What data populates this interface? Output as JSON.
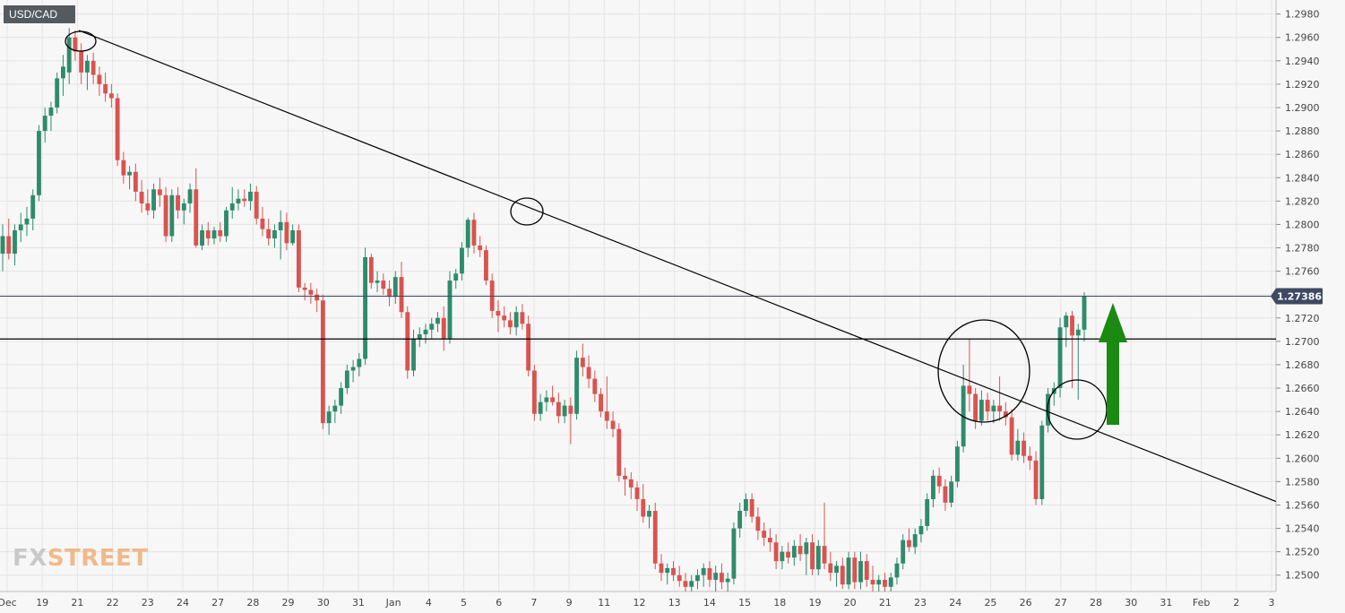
{
  "symbol": "USD/CAD",
  "logo": {
    "fx": "FX",
    "street": "STREET"
  },
  "colors": {
    "background": "#f7f7f7",
    "grid": "#e4e4e4",
    "bull": "#2e8b6b",
    "bear": "#d9534f",
    "line": "#000000",
    "price_badge": "#3e4a63",
    "arrow": "#1a8a12"
  },
  "chart_data": {
    "type": "candlestick",
    "title": "",
    "xlabel": "",
    "ylabel": "",
    "ylim": [
      1.2486,
      1.2992
    ],
    "y_ticks": [
      "1.2980",
      "1.2960",
      "1.2940",
      "1.2920",
      "1.2900",
      "1.2880",
      "1.2860",
      "1.2840",
      "1.2820",
      "1.2800",
      "1.2780",
      "1.2760",
      "1.2740",
      "1.2720",
      "1.2700",
      "1.2680",
      "1.2660",
      "1.2640",
      "1.2620",
      "1.2600",
      "1.2580",
      "1.2560",
      "1.2540",
      "1.2520",
      "1.2500"
    ],
    "x_ticks": [
      "Dec",
      "19",
      "21",
      "22",
      "23",
      "24",
      "27",
      "28",
      "29",
      "30",
      "31",
      "Jan",
      "4",
      "5",
      "6",
      "7",
      "9",
      "11",
      "12",
      "13",
      "14",
      "15",
      "18",
      "19",
      "20",
      "21",
      "23",
      "24",
      "25",
      "26",
      "27",
      "28",
      "30",
      "31",
      "Feb",
      "2",
      "3"
    ],
    "current_price": "1.27386",
    "current_price_value": 1.27386,
    "support_level": 1.2702,
    "trendline": {
      "start_price": 1.2966,
      "end_price": 1.2563
    },
    "annotations": [
      "circle at Dec 20 high",
      "circle at Jan 6 high",
      "large circle at Jan 24 high",
      "circle at Jan 27 retest",
      "green up arrow"
    ],
    "candles": [
      {
        "o": 1.2775,
        "h": 1.28,
        "l": 1.276,
        "c": 1.279
      },
      {
        "o": 1.279,
        "h": 1.2805,
        "l": 1.277,
        "c": 1.2775
      },
      {
        "o": 1.2775,
        "h": 1.28,
        "l": 1.2765,
        "c": 1.2795
      },
      {
        "o": 1.2795,
        "h": 1.281,
        "l": 1.2785,
        "c": 1.28
      },
      {
        "o": 1.28,
        "h": 1.2815,
        "l": 1.279,
        "c": 1.2805
      },
      {
        "o": 1.2805,
        "h": 1.283,
        "l": 1.2795,
        "c": 1.2825
      },
      {
        "o": 1.2825,
        "h": 1.2885,
        "l": 1.282,
        "c": 1.288
      },
      {
        "o": 1.288,
        "h": 1.29,
        "l": 1.287,
        "c": 1.2893
      },
      {
        "o": 1.2893,
        "h": 1.2905,
        "l": 1.288,
        "c": 1.29
      },
      {
        "o": 1.29,
        "h": 1.293,
        "l": 1.2895,
        "c": 1.2925
      },
      {
        "o": 1.2925,
        "h": 1.2945,
        "l": 1.291,
        "c": 1.2935
      },
      {
        "o": 1.293,
        "h": 1.2968,
        "l": 1.292,
        "c": 1.296
      },
      {
        "o": 1.296,
        "h": 1.2966,
        "l": 1.294,
        "c": 1.2948
      },
      {
        "o": 1.2948,
        "h": 1.2955,
        "l": 1.292,
        "c": 1.293
      },
      {
        "o": 1.293,
        "h": 1.2945,
        "l": 1.2915,
        "c": 1.294
      },
      {
        "o": 1.294,
        "h": 1.2947,
        "l": 1.292,
        "c": 1.2928
      },
      {
        "o": 1.2928,
        "h": 1.2935,
        "l": 1.291,
        "c": 1.292
      },
      {
        "o": 1.292,
        "h": 1.293,
        "l": 1.2905,
        "c": 1.2912
      },
      {
        "o": 1.2912,
        "h": 1.292,
        "l": 1.29,
        "c": 1.2908
      },
      {
        "o": 1.2908,
        "h": 1.2912,
        "l": 1.285,
        "c": 1.2855
      },
      {
        "o": 1.2855,
        "h": 1.2862,
        "l": 1.2835,
        "c": 1.2842
      },
      {
        "o": 1.2842,
        "h": 1.285,
        "l": 1.283,
        "c": 1.2845
      },
      {
        "o": 1.2845,
        "h": 1.2852,
        "l": 1.282,
        "c": 1.2828
      },
      {
        "o": 1.2828,
        "h": 1.2838,
        "l": 1.281,
        "c": 1.2818
      },
      {
        "o": 1.2818,
        "h": 1.283,
        "l": 1.2808,
        "c": 1.2812
      },
      {
        "o": 1.2812,
        "h": 1.2835,
        "l": 1.2805,
        "c": 1.283
      },
      {
        "o": 1.283,
        "h": 1.284,
        "l": 1.2815,
        "c": 1.2825
      },
      {
        "o": 1.2825,
        "h": 1.2832,
        "l": 1.2785,
        "c": 1.279
      },
      {
        "o": 1.279,
        "h": 1.283,
        "l": 1.2785,
        "c": 1.2825
      },
      {
        "o": 1.2825,
        "h": 1.2832,
        "l": 1.2805,
        "c": 1.2812
      },
      {
        "o": 1.2812,
        "h": 1.2822,
        "l": 1.28,
        "c": 1.2818
      },
      {
        "o": 1.2818,
        "h": 1.2835,
        "l": 1.281,
        "c": 1.283
      },
      {
        "o": 1.283,
        "h": 1.2848,
        "l": 1.278,
        "c": 1.2782
      },
      {
        "o": 1.2782,
        "h": 1.28,
        "l": 1.2778,
        "c": 1.2795
      },
      {
        "o": 1.2795,
        "h": 1.2802,
        "l": 1.2782,
        "c": 1.2788
      },
      {
        "o": 1.2788,
        "h": 1.2798,
        "l": 1.2783,
        "c": 1.2795
      },
      {
        "o": 1.2795,
        "h": 1.2802,
        "l": 1.2785,
        "c": 1.279
      },
      {
        "o": 1.279,
        "h": 1.2815,
        "l": 1.2785,
        "c": 1.2812
      },
      {
        "o": 1.2812,
        "h": 1.2832,
        "l": 1.2805,
        "c": 1.2818
      },
      {
        "o": 1.2818,
        "h": 1.283,
        "l": 1.2812,
        "c": 1.2822
      },
      {
        "o": 1.2822,
        "h": 1.283,
        "l": 1.2815,
        "c": 1.282
      },
      {
        "o": 1.282,
        "h": 1.2835,
        "l": 1.2812,
        "c": 1.2828
      },
      {
        "o": 1.2828,
        "h": 1.2833,
        "l": 1.28,
        "c": 1.2805
      },
      {
        "o": 1.2805,
        "h": 1.2815,
        "l": 1.279,
        "c": 1.2796
      },
      {
        "o": 1.2796,
        "h": 1.2805,
        "l": 1.2782,
        "c": 1.2788
      },
      {
        "o": 1.2788,
        "h": 1.28,
        "l": 1.278,
        "c": 1.2795
      },
      {
        "o": 1.2795,
        "h": 1.2812,
        "l": 1.277,
        "c": 1.2802
      },
      {
        "o": 1.2802,
        "h": 1.281,
        "l": 1.2778,
        "c": 1.2784
      },
      {
        "o": 1.2784,
        "h": 1.28,
        "l": 1.2782,
        "c": 1.2795
      },
      {
        "o": 1.2795,
        "h": 1.28,
        "l": 1.2742,
        "c": 1.2746
      },
      {
        "o": 1.2746,
        "h": 1.275,
        "l": 1.2735,
        "c": 1.2744
      },
      {
        "o": 1.2744,
        "h": 1.275,
        "l": 1.2732,
        "c": 1.274
      },
      {
        "o": 1.274,
        "h": 1.2745,
        "l": 1.2725,
        "c": 1.2735
      },
      {
        "o": 1.2735,
        "h": 1.274,
        "l": 1.2625,
        "c": 1.263
      },
      {
        "o": 1.263,
        "h": 1.2645,
        "l": 1.262,
        "c": 1.264
      },
      {
        "o": 1.264,
        "h": 1.265,
        "l": 1.263,
        "c": 1.2645
      },
      {
        "o": 1.2645,
        "h": 1.2665,
        "l": 1.2638,
        "c": 1.266
      },
      {
        "o": 1.266,
        "h": 1.268,
        "l": 1.2655,
        "c": 1.2675
      },
      {
        "o": 1.2675,
        "h": 1.2684,
        "l": 1.2665,
        "c": 1.2678
      },
      {
        "o": 1.2678,
        "h": 1.269,
        "l": 1.267,
        "c": 1.2685
      },
      {
        "o": 1.2685,
        "h": 1.278,
        "l": 1.268,
        "c": 1.2772
      },
      {
        "o": 1.2772,
        "h": 1.2775,
        "l": 1.2745,
        "c": 1.275
      },
      {
        "o": 1.275,
        "h": 1.276,
        "l": 1.2742,
        "c": 1.2752
      },
      {
        "o": 1.2752,
        "h": 1.2758,
        "l": 1.274,
        "c": 1.2745
      },
      {
        "o": 1.2745,
        "h": 1.2752,
        "l": 1.273,
        "c": 1.2738
      },
      {
        "o": 1.2738,
        "h": 1.276,
        "l": 1.2732,
        "c": 1.2755
      },
      {
        "o": 1.2755,
        "h": 1.2768,
        "l": 1.272,
        "c": 1.2725
      },
      {
        "o": 1.2725,
        "h": 1.273,
        "l": 1.2668,
        "c": 1.2675
      },
      {
        "o": 1.2675,
        "h": 1.271,
        "l": 1.267,
        "c": 1.2702
      },
      {
        "o": 1.2702,
        "h": 1.2712,
        "l": 1.2695,
        "c": 1.2706
      },
      {
        "o": 1.2706,
        "h": 1.2715,
        "l": 1.2698,
        "c": 1.271
      },
      {
        "o": 1.271,
        "h": 1.272,
        "l": 1.2702,
        "c": 1.2715
      },
      {
        "o": 1.2715,
        "h": 1.2725,
        "l": 1.2708,
        "c": 1.272
      },
      {
        "o": 1.272,
        "h": 1.273,
        "l": 1.2692,
        "c": 1.2702
      },
      {
        "o": 1.2702,
        "h": 1.276,
        "l": 1.2698,
        "c": 1.2752
      },
      {
        "o": 1.2752,
        "h": 1.2762,
        "l": 1.2745,
        "c": 1.2758
      },
      {
        "o": 1.2758,
        "h": 1.2785,
        "l": 1.2752,
        "c": 1.278
      },
      {
        "o": 1.278,
        "h": 1.2806,
        "l": 1.2772,
        "c": 1.2804
      },
      {
        "o": 1.2804,
        "h": 1.281,
        "l": 1.2775,
        "c": 1.2782
      },
      {
        "o": 1.2782,
        "h": 1.279,
        "l": 1.2772,
        "c": 1.2778
      },
      {
        "o": 1.2778,
        "h": 1.2782,
        "l": 1.2748,
        "c": 1.2752
      },
      {
        "o": 1.2752,
        "h": 1.2758,
        "l": 1.272,
        "c": 1.2726
      },
      {
        "o": 1.2726,
        "h": 1.2735,
        "l": 1.2708,
        "c": 1.2722
      },
      {
        "o": 1.2722,
        "h": 1.273,
        "l": 1.2712,
        "c": 1.2718
      },
      {
        "o": 1.2718,
        "h": 1.2725,
        "l": 1.2706,
        "c": 1.2712
      },
      {
        "o": 1.2712,
        "h": 1.273,
        "l": 1.2705,
        "c": 1.2725
      },
      {
        "o": 1.2725,
        "h": 1.2732,
        "l": 1.271,
        "c": 1.2715
      },
      {
        "o": 1.2715,
        "h": 1.2722,
        "l": 1.267,
        "c": 1.2675
      },
      {
        "o": 1.2675,
        "h": 1.268,
        "l": 1.2632,
        "c": 1.2638
      },
      {
        "o": 1.2638,
        "h": 1.2655,
        "l": 1.2632,
        "c": 1.2648
      },
      {
        "o": 1.2648,
        "h": 1.2658,
        "l": 1.264,
        "c": 1.2652
      },
      {
        "o": 1.2652,
        "h": 1.2662,
        "l": 1.2645,
        "c": 1.2648
      },
      {
        "o": 1.2648,
        "h": 1.2656,
        "l": 1.263,
        "c": 1.2636
      },
      {
        "o": 1.2636,
        "h": 1.265,
        "l": 1.263,
        "c": 1.2645
      },
      {
        "o": 1.2645,
        "h": 1.2652,
        "l": 1.2612,
        "c": 1.2638
      },
      {
        "o": 1.2638,
        "h": 1.2692,
        "l": 1.2633,
        "c": 1.2686
      },
      {
        "o": 1.2686,
        "h": 1.2698,
        "l": 1.267,
        "c": 1.2678
      },
      {
        "o": 1.2678,
        "h": 1.2688,
        "l": 1.266,
        "c": 1.2668
      },
      {
        "o": 1.2668,
        "h": 1.2675,
        "l": 1.2648,
        "c": 1.2655
      },
      {
        "o": 1.2655,
        "h": 1.266,
        "l": 1.2635,
        "c": 1.264
      },
      {
        "o": 1.264,
        "h": 1.267,
        "l": 1.2625,
        "c": 1.2632
      },
      {
        "o": 1.2632,
        "h": 1.264,
        "l": 1.2618,
        "c": 1.2625
      },
      {
        "o": 1.2625,
        "h": 1.263,
        "l": 1.258,
        "c": 1.2585
      },
      {
        "o": 1.2585,
        "h": 1.2592,
        "l": 1.2568,
        "c": 1.2582
      },
      {
        "o": 1.2582,
        "h": 1.2588,
        "l": 1.2565,
        "c": 1.2575
      },
      {
        "o": 1.2575,
        "h": 1.258,
        "l": 1.2555,
        "c": 1.2565
      },
      {
        "o": 1.2565,
        "h": 1.2578,
        "l": 1.2545,
        "c": 1.255
      },
      {
        "o": 1.255,
        "h": 1.256,
        "l": 1.254,
        "c": 1.2555
      },
      {
        "o": 1.2555,
        "h": 1.2562,
        "l": 1.2505,
        "c": 1.251
      },
      {
        "o": 1.251,
        "h": 1.2518,
        "l": 1.2495,
        "c": 1.2502
      },
      {
        "o": 1.2502,
        "h": 1.251,
        "l": 1.2492,
        "c": 1.2506
      },
      {
        "o": 1.2506,
        "h": 1.2512,
        "l": 1.2495,
        "c": 1.25
      },
      {
        "o": 1.25,
        "h": 1.2508,
        "l": 1.249,
        "c": 1.2495
      },
      {
        "o": 1.2495,
        "h": 1.2502,
        "l": 1.2486,
        "c": 1.249
      },
      {
        "o": 1.249,
        "h": 1.25,
        "l": 1.2486,
        "c": 1.2495
      },
      {
        "o": 1.2495,
        "h": 1.2505,
        "l": 1.2488,
        "c": 1.25
      },
      {
        "o": 1.25,
        "h": 1.251,
        "l": 1.249,
        "c": 1.2506
      },
      {
        "o": 1.2506,
        "h": 1.2512,
        "l": 1.249,
        "c": 1.2496
      },
      {
        "o": 1.2496,
        "h": 1.2508,
        "l": 1.2486,
        "c": 1.2502
      },
      {
        "o": 1.2502,
        "h": 1.251,
        "l": 1.2488,
        "c": 1.2494
      },
      {
        "o": 1.2494,
        "h": 1.2502,
        "l": 1.2486,
        "c": 1.2497
      },
      {
        "o": 1.2497,
        "h": 1.2545,
        "l": 1.2492,
        "c": 1.254
      },
      {
        "o": 1.254,
        "h": 1.2562,
        "l": 1.2532,
        "c": 1.2555
      },
      {
        "o": 1.2555,
        "h": 1.257,
        "l": 1.255,
        "c": 1.2565
      },
      {
        "o": 1.2565,
        "h": 1.257,
        "l": 1.2545,
        "c": 1.255
      },
      {
        "o": 1.255,
        "h": 1.2558,
        "l": 1.253,
        "c": 1.2538
      },
      {
        "o": 1.2538,
        "h": 1.2545,
        "l": 1.2525,
        "c": 1.2532
      },
      {
        "o": 1.2532,
        "h": 1.254,
        "l": 1.252,
        "c": 1.2528
      },
      {
        "o": 1.2528,
        "h": 1.2535,
        "l": 1.2505,
        "c": 1.2512
      },
      {
        "o": 1.2512,
        "h": 1.2525,
        "l": 1.2505,
        "c": 1.252
      },
      {
        "o": 1.252,
        "h": 1.2528,
        "l": 1.251,
        "c": 1.2515
      },
      {
        "o": 1.2515,
        "h": 1.253,
        "l": 1.2508,
        "c": 1.2525
      },
      {
        "o": 1.2525,
        "h": 1.2535,
        "l": 1.2512,
        "c": 1.2518
      },
      {
        "o": 1.2518,
        "h": 1.2532,
        "l": 1.25,
        "c": 1.2528
      },
      {
        "o": 1.2528,
        "h": 1.2535,
        "l": 1.25,
        "c": 1.2505
      },
      {
        "o": 1.2505,
        "h": 1.253,
        "l": 1.25,
        "c": 1.2525
      },
      {
        "o": 1.2525,
        "h": 1.2562,
        "l": 1.2505,
        "c": 1.251
      },
      {
        "o": 1.251,
        "h": 1.252,
        "l": 1.2495,
        "c": 1.2502
      },
      {
        "o": 1.2502,
        "h": 1.2512,
        "l": 1.249,
        "c": 1.2508
      },
      {
        "o": 1.2508,
        "h": 1.2515,
        "l": 1.2488,
        "c": 1.2492
      },
      {
        "o": 1.2492,
        "h": 1.252,
        "l": 1.2488,
        "c": 1.2515
      },
      {
        "o": 1.2515,
        "h": 1.252,
        "l": 1.2488,
        "c": 1.2494
      },
      {
        "o": 1.2494,
        "h": 1.252,
        "l": 1.2488,
        "c": 1.2512
      },
      {
        "o": 1.2512,
        "h": 1.2518,
        "l": 1.249,
        "c": 1.2496
      },
      {
        "o": 1.2496,
        "h": 1.2508,
        "l": 1.2486,
        "c": 1.2492
      },
      {
        "o": 1.2492,
        "h": 1.25,
        "l": 1.2486,
        "c": 1.2496
      },
      {
        "o": 1.2496,
        "h": 1.2502,
        "l": 1.2486,
        "c": 1.249
      },
      {
        "o": 1.249,
        "h": 1.2502,
        "l": 1.2486,
        "c": 1.2498
      },
      {
        "o": 1.2498,
        "h": 1.2515,
        "l": 1.2492,
        "c": 1.251
      },
      {
        "o": 1.251,
        "h": 1.2535,
        "l": 1.2505,
        "c": 1.253
      },
      {
        "o": 1.253,
        "h": 1.254,
        "l": 1.252,
        "c": 1.2524
      },
      {
        "o": 1.2524,
        "h": 1.254,
        "l": 1.2518,
        "c": 1.2535
      },
      {
        "o": 1.2535,
        "h": 1.2548,
        "l": 1.2528,
        "c": 1.2542
      },
      {
        "o": 1.2542,
        "h": 1.257,
        "l": 1.2538,
        "c": 1.2565
      },
      {
        "o": 1.2565,
        "h": 1.259,
        "l": 1.2558,
        "c": 1.2585
      },
      {
        "o": 1.2585,
        "h": 1.2592,
        "l": 1.257,
        "c": 1.2576
      },
      {
        "o": 1.2576,
        "h": 1.2582,
        "l": 1.2555,
        "c": 1.2562
      },
      {
        "o": 1.2562,
        "h": 1.2585,
        "l": 1.2558,
        "c": 1.258
      },
      {
        "o": 1.258,
        "h": 1.2615,
        "l": 1.2575,
        "c": 1.261
      },
      {
        "o": 1.261,
        "h": 1.268,
        "l": 1.2605,
        "c": 1.2662
      },
      {
        "o": 1.2662,
        "h": 1.2702,
        "l": 1.264,
        "c": 1.2655
      },
      {
        "o": 1.2655,
        "h": 1.266,
        "l": 1.2625,
        "c": 1.2632
      },
      {
        "o": 1.2632,
        "h": 1.2658,
        "l": 1.2628,
        "c": 1.265
      },
      {
        "o": 1.265,
        "h": 1.2656,
        "l": 1.2632,
        "c": 1.264
      },
      {
        "o": 1.264,
        "h": 1.265,
        "l": 1.263,
        "c": 1.2645
      },
      {
        "o": 1.2645,
        "h": 1.267,
        "l": 1.2632,
        "c": 1.264
      },
      {
        "o": 1.264,
        "h": 1.2648,
        "l": 1.2628,
        "c": 1.2635
      },
      {
        "o": 1.2635,
        "h": 1.2642,
        "l": 1.2598,
        "c": 1.2603
      },
      {
        "o": 1.2603,
        "h": 1.2625,
        "l": 1.2598,
        "c": 1.2615
      },
      {
        "o": 1.2615,
        "h": 1.2622,
        "l": 1.2596,
        "c": 1.2602
      },
      {
        "o": 1.2602,
        "h": 1.261,
        "l": 1.259,
        "c": 1.2598
      },
      {
        "o": 1.2598,
        "h": 1.2606,
        "l": 1.256,
        "c": 1.2565
      },
      {
        "o": 1.2565,
        "h": 1.2632,
        "l": 1.256,
        "c": 1.2628
      },
      {
        "o": 1.2628,
        "h": 1.266,
        "l": 1.2622,
        "c": 1.2655
      },
      {
        "o": 1.2655,
        "h": 1.2665,
        "l": 1.2645,
        "c": 1.266
      },
      {
        "o": 1.266,
        "h": 1.272,
        "l": 1.2652,
        "c": 1.2712
      },
      {
        "o": 1.2712,
        "h": 1.2725,
        "l": 1.2695,
        "c": 1.2722
      },
      {
        "o": 1.2722,
        "h": 1.2726,
        "l": 1.266,
        "c": 1.2705
      },
      {
        "o": 1.2705,
        "h": 1.2715,
        "l": 1.265,
        "c": 1.271
      },
      {
        "o": 1.271,
        "h": 1.2742,
        "l": 1.27,
        "c": 1.2739
      }
    ]
  }
}
